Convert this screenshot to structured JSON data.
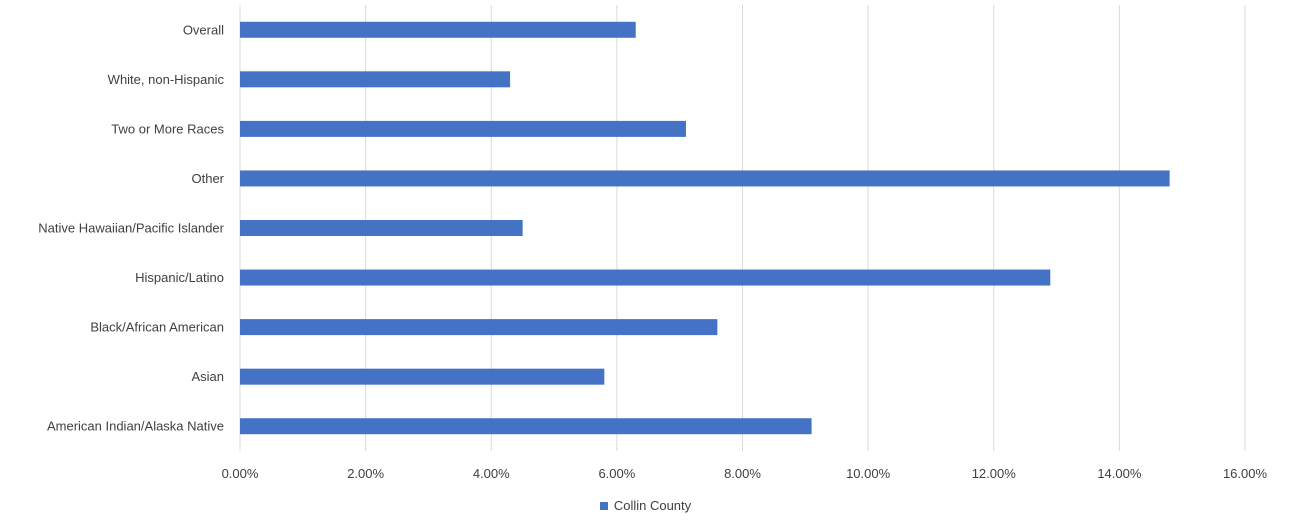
{
  "chart_data": {
    "type": "bar",
    "orientation": "horizontal",
    "categories": [
      "Overall",
      "White, non-Hispanic",
      "Two or More Races",
      "Other",
      "Native Hawaiian/Pacific Islander",
      "Hispanic/Latino",
      "Black/African American",
      "Asian",
      "American Indian/Alaska Native"
    ],
    "series": [
      {
        "name": "Collin County",
        "values": [
          6.3,
          4.3,
          7.1,
          14.8,
          4.5,
          12.9,
          7.6,
          5.8,
          9.1
        ],
        "color": "#4472c4"
      }
    ],
    "xlim": [
      0,
      16
    ],
    "x_ticks": [
      "0.00%",
      "2.00%",
      "4.00%",
      "6.00%",
      "8.00%",
      "10.00%",
      "12.00%",
      "14.00%",
      "16.00%"
    ],
    "grid": "vertical",
    "legend_position": "bottom",
    "title": "",
    "xlabel": "",
    "ylabel": ""
  }
}
